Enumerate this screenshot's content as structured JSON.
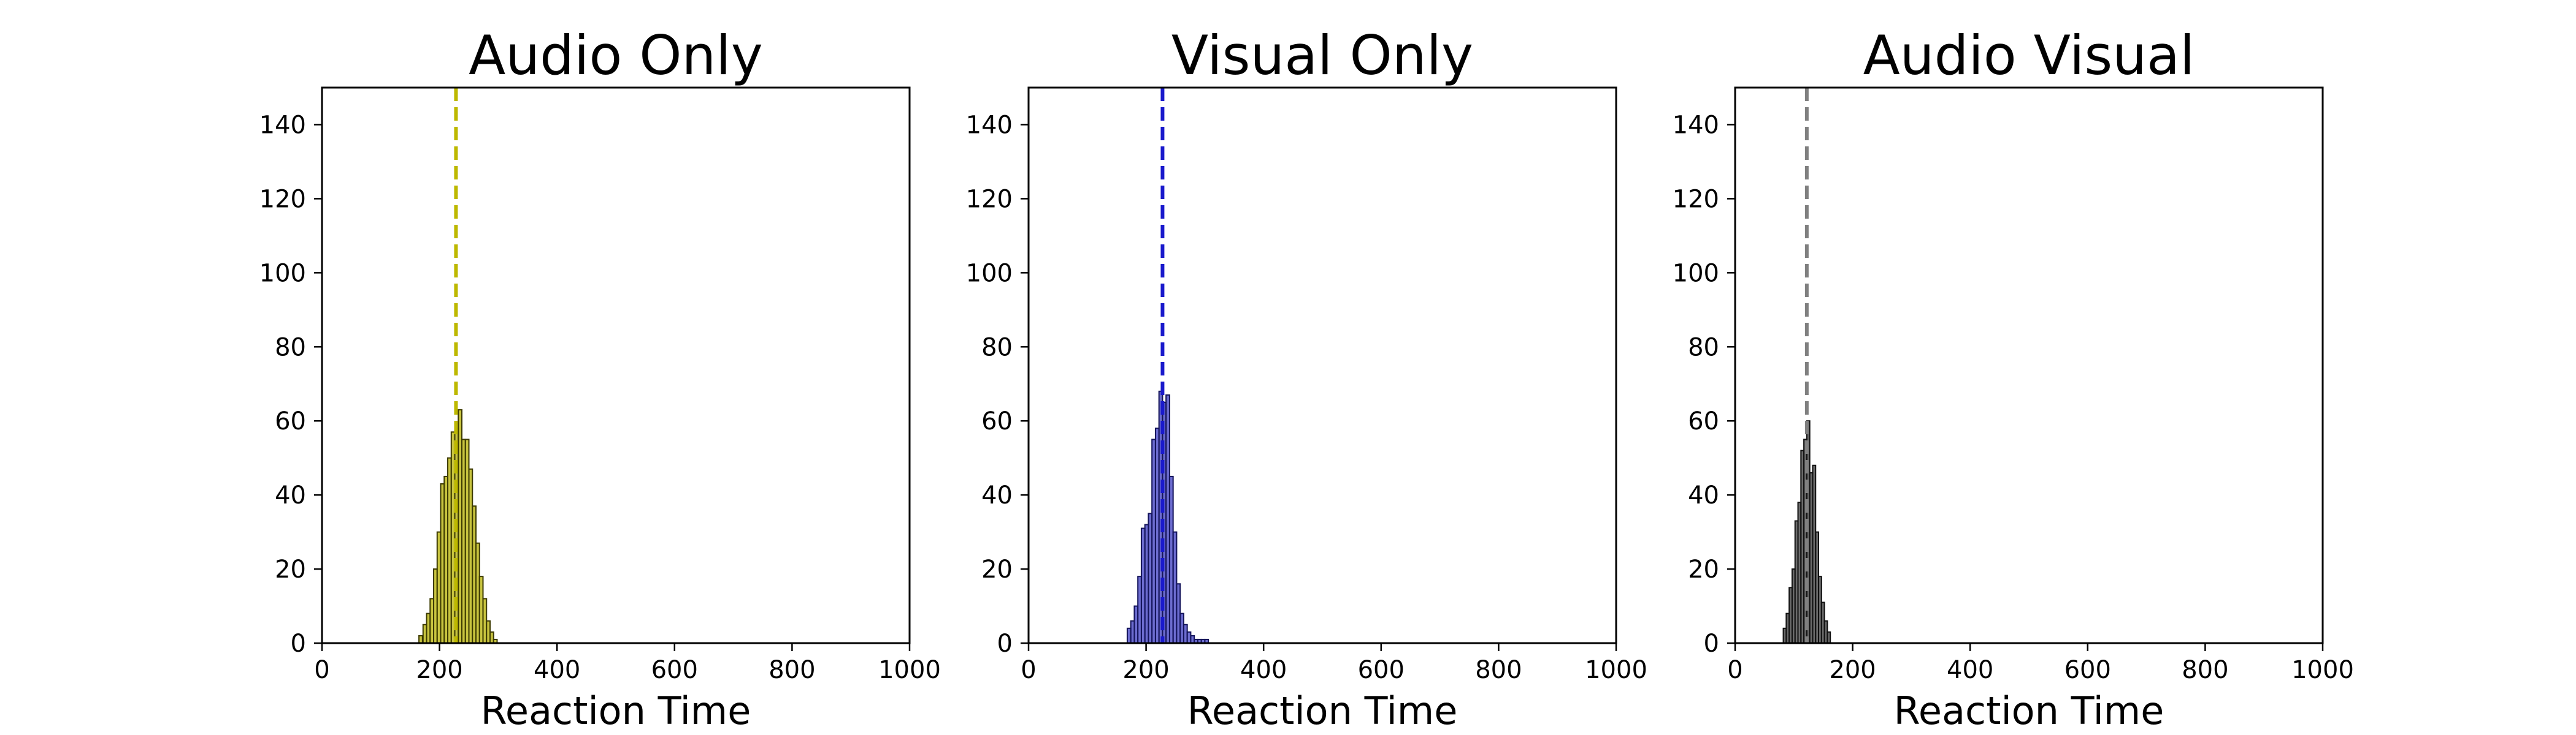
{
  "chart_data": [
    {
      "type": "bar",
      "title": "Audio Only",
      "xlabel": "Reaction Time",
      "ylabel": "",
      "xlim": [
        0,
        1000
      ],
      "ylim": [
        0,
        150
      ],
      "xticks": [
        0,
        200,
        400,
        600,
        800,
        1000
      ],
      "yticks": [
        0,
        20,
        40,
        60,
        80,
        100,
        120,
        140
      ],
      "bar_color": "#b5b000",
      "bar_edge": "#3c3a00",
      "mean_line": 228,
      "mean_line_color": "#bdb800",
      "bins": {
        "x": [
          165,
          172,
          178,
          184,
          190,
          196,
          202,
          208,
          214,
          220,
          226,
          232,
          238,
          244,
          250,
          256,
          262,
          268,
          274,
          280,
          286,
          292
        ],
        "y": [
          2,
          5,
          8,
          12,
          20,
          30,
          43,
          45,
          50,
          57,
          58,
          63,
          55,
          55,
          47,
          37,
          27,
          18,
          12,
          6,
          3,
          1
        ],
        "width": 6
      }
    },
    {
      "type": "bar",
      "title": "Visual Only",
      "xlabel": "Reaction Time",
      "ylabel": "",
      "xlim": [
        0,
        1000
      ],
      "ylim": [
        0,
        150
      ],
      "xticks": [
        0,
        200,
        400,
        600,
        800,
        1000
      ],
      "yticks": [
        0,
        20,
        40,
        60,
        80,
        100,
        120,
        140
      ],
      "bar_color": "#3b3bbf",
      "bar_edge": "#14145a",
      "mean_line": 228,
      "mean_line_color": "#1a1acc",
      "bins": {
        "x": [
          168,
          174,
          180,
          186,
          192,
          198,
          204,
          210,
          216,
          222,
          228,
          234,
          240,
          246,
          252,
          258,
          264,
          270,
          276,
          282,
          288,
          294,
          300
        ],
        "y": [
          4,
          6,
          10,
          18,
          31,
          32,
          35,
          55,
          58,
          68,
          65,
          67,
          45,
          30,
          16,
          8,
          5,
          3,
          2,
          1,
          1,
          1,
          1
        ],
        "width": 6
      }
    },
    {
      "type": "bar",
      "title": "Audio Visual",
      "xlabel": "Reaction Time",
      "ylabel": "",
      "xlim": [
        0,
        1000
      ],
      "ylim": [
        0,
        150
      ],
      "xticks": [
        0,
        200,
        400,
        600,
        800,
        1000
      ],
      "yticks": [
        0,
        20,
        40,
        60,
        80,
        100,
        120,
        140
      ],
      "bar_color": "#3a3a3a",
      "bar_edge": "#111111",
      "mean_line": 122,
      "mean_line_color": "#808080",
      "bins": {
        "x": [
          82,
          87,
          92,
          97,
          102,
          107,
          112,
          117,
          122,
          127,
          132,
          137,
          142,
          147,
          152,
          157
        ],
        "y": [
          4,
          8,
          15,
          20,
          33,
          38,
          52,
          55,
          60,
          46,
          48,
          30,
          18,
          11,
          6,
          3
        ],
        "width": 5
      }
    }
  ]
}
